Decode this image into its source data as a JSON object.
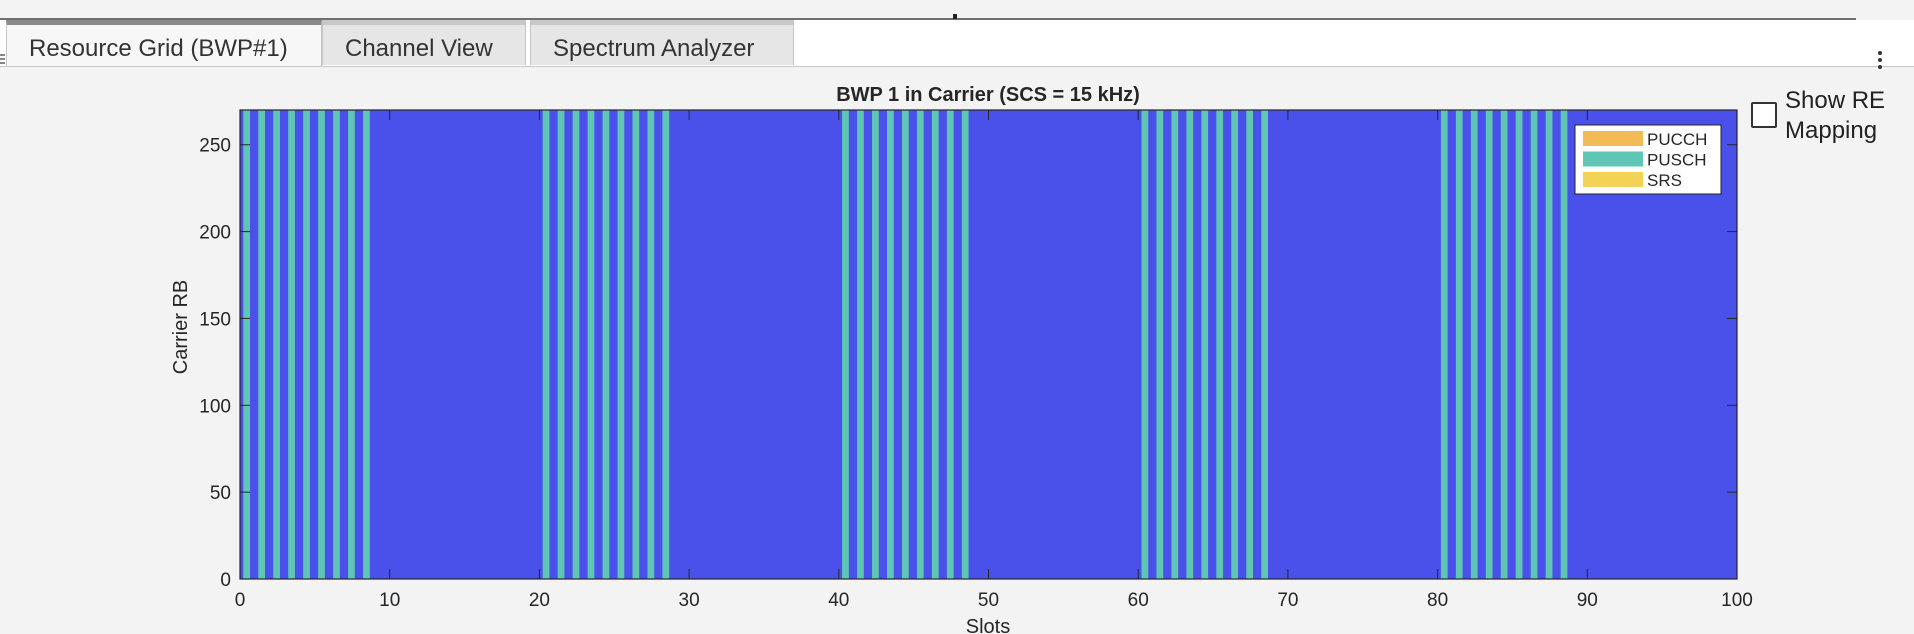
{
  "tabs": [
    {
      "label": "Resource Grid (BWP#1)",
      "active": true
    },
    {
      "label": "Channel View",
      "active": false
    },
    {
      "label": "Spectrum Analyzer",
      "active": false
    }
  ],
  "checkbox": {
    "label": "Show RE Mapping",
    "checked": false
  },
  "colors": {
    "background": "#4951ea",
    "pucch": "#f2bb55",
    "pusch": "#5fc6b6",
    "srs": "#f3d355",
    "axis": "#262626"
  },
  "chart_data": {
    "type": "heatmap",
    "title": "BWP 1 in Carrier (SCS = 15 kHz)",
    "xlabel": "Slots",
    "ylabel": "Carrier RB",
    "xlim": [
      0,
      100
    ],
    "ylim": [
      0,
      270
    ],
    "xticks": [
      0,
      10,
      20,
      30,
      40,
      50,
      60,
      70,
      80,
      90,
      100
    ],
    "yticks": [
      0,
      50,
      100,
      150,
      200,
      250
    ],
    "legend": {
      "position": "top-right",
      "entries": [
        "PUCCH",
        "PUSCH",
        "SRS"
      ]
    },
    "pusch_slots": [
      0,
      1,
      2,
      3,
      4,
      5,
      6,
      7,
      8,
      20,
      21,
      22,
      23,
      24,
      25,
      26,
      27,
      28,
      40,
      41,
      42,
      43,
      44,
      45,
      46,
      47,
      48,
      60,
      61,
      62,
      63,
      64,
      65,
      66,
      67,
      68,
      80,
      81,
      82,
      83,
      84,
      85,
      86,
      87,
      88
    ],
    "pusch_rb_range": [
      0,
      270
    ],
    "pusch_fraction_of_slot": 0.45,
    "grid": false
  }
}
